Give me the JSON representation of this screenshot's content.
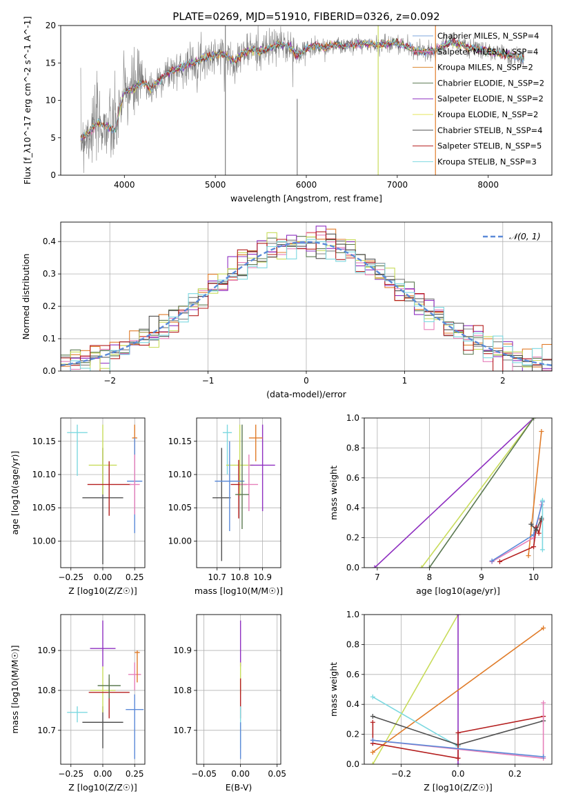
{
  "figure": {
    "suptitle": "PLATE=0269, MJD=51910, FIBERID=0326, z=0.092"
  },
  "chart_data": [
    {
      "id": "spectrum",
      "type": "line",
      "xlabel": "wavelength [Angstrom, rest frame]",
      "ylabel": "Flux [f_λ10^-17 erg cm^-2 s^-1 A^-1]",
      "xlim": [
        3300,
        8700
      ],
      "ylim": [
        0,
        20
      ],
      "xticks": [
        4000,
        5000,
        6000,
        7000,
        8000
      ],
      "yticks": [
        0,
        5,
        10,
        15,
        20
      ],
      "grid": false,
      "legend_position": "right",
      "spikes": [
        {
          "x": 5110,
          "y_top": 20,
          "color": "#7f7f7f"
        },
        {
          "x": 6790,
          "y_top": 20,
          "color": "#c8dc5a"
        },
        {
          "x": 7420,
          "y_top": 20,
          "color": "#e07b28"
        },
        {
          "x": 5900,
          "y_top": 10.2,
          "color": "#7f7f7f"
        }
      ],
      "continuum": [
        [
          3520,
          5.0
        ],
        [
          3600,
          5.5
        ],
        [
          3700,
          7.0
        ],
        [
          3800,
          6.5
        ],
        [
          3900,
          6.0
        ],
        [
          3950,
          9.0
        ],
        [
          4000,
          11.0
        ],
        [
          4100,
          11.5
        ],
        [
          4200,
          12.5
        ],
        [
          4300,
          11.5
        ],
        [
          4400,
          13.0
        ],
        [
          4500,
          13.8
        ],
        [
          4600,
          14.2
        ],
        [
          4700,
          14.8
        ],
        [
          4800,
          15.2
        ],
        [
          4900,
          15.8
        ],
        [
          5000,
          16.0
        ],
        [
          5100,
          16.3
        ],
        [
          5200,
          15.2
        ],
        [
          5300,
          16.3
        ],
        [
          5400,
          16.8
        ],
        [
          5500,
          16.6
        ],
        [
          5600,
          17.0
        ],
        [
          5700,
          17.5
        ],
        [
          5800,
          17.3
        ],
        [
          5900,
          16.0
        ],
        [
          6000,
          16.8
        ],
        [
          6100,
          17.3
        ],
        [
          6200,
          17.0
        ],
        [
          6300,
          17.5
        ],
        [
          6400,
          17.2
        ],
        [
          6500,
          17.4
        ],
        [
          6600,
          17.6
        ],
        [
          6700,
          17.5
        ],
        [
          6800,
          17.4
        ],
        [
          6900,
          17.6
        ],
        [
          7000,
          17.6
        ],
        [
          7100,
          17.3
        ],
        [
          7200,
          16.6
        ],
        [
          7300,
          16.5
        ],
        [
          7400,
          16.6
        ],
        [
          7500,
          17.2
        ],
        [
          7600,
          17.8
        ],
        [
          7700,
          17.4
        ],
        [
          7800,
          17.0
        ],
        [
          7900,
          16.8
        ],
        [
          8000,
          16.6
        ],
        [
          8100,
          16.3
        ],
        [
          8200,
          16.1
        ],
        [
          8300,
          15.9
        ],
        [
          8400,
          15.5
        ]
      ],
      "series": [
        {
          "name": "Chabrier MILES, N_SSP=4",
          "color": "#7ea4dc"
        },
        {
          "name": "Salpeter MILES, N_SSP=4",
          "color": "#e67fb9"
        },
        {
          "name": "Kroupa MILES, N_SSP=2",
          "color": "#dc8228"
        },
        {
          "name": "Chabrier ELODIE, N_SSP=2",
          "color": "#5a7850"
        },
        {
          "name": "Salpeter ELODIE, N_SSP=2",
          "color": "#8e2ec0"
        },
        {
          "name": "Kroupa ELODIE, N_SSP=2",
          "color": "#e6e65a"
        },
        {
          "name": "Chabrier STELIB, N_SSP=4",
          "color": "#505050"
        },
        {
          "name": "Salpeter STELIB, N_SSP=5",
          "color": "#b41e1e"
        },
        {
          "name": "Kroupa STELIB, N_SSP=3",
          "color": "#7cd8e0"
        }
      ]
    },
    {
      "id": "residuals",
      "type": "line",
      "xlabel": "(data-model)/error",
      "ylabel": "Normed distribution",
      "xlim": [
        -2.5,
        2.5
      ],
      "ylim": [
        0,
        0.46
      ],
      "xticks": [
        -2,
        -1,
        0,
        1,
        2
      ],
      "yticks": [
        0.0,
        0.1,
        0.2,
        0.3,
        0.4
      ],
      "grid": true,
      "legend_position": "top-right",
      "legend_label": "𝒩(0, 1)",
      "gaussian": {
        "mu": 0,
        "sigma": 1,
        "color": "#5b8ad8"
      },
      "hist_colors": [
        "#7f7f7f",
        "#e07b28",
        "#e67fb9",
        "#5a7850",
        "#8e2ec0",
        "#c8dc5a",
        "#505050",
        "#b41e1e",
        "#7cd8e0"
      ]
    },
    {
      "id": "age-vs-Z",
      "type": "scatter",
      "xlabel": "Z [log10(Z/Z☉)]",
      "ylabel": "age  [log10(age/yr)]",
      "xlim": [
        -0.33,
        0.33
      ],
      "ylim": [
        9.96,
        10.185
      ],
      "xticks": [
        -0.25,
        0.0,
        0.25
      ],
      "yticks": [
        10.0,
        10.05,
        10.1,
        10.15
      ],
      "grid": true,
      "points": [
        {
          "x": -0.2,
          "y": 10.163,
          "xerr": 0.08,
          "ylo": 10.098,
          "yhi": 10.175,
          "color": "#7cd8e0"
        },
        {
          "x": 0.0,
          "y": 10.065,
          "xerr": 0.16,
          "ylo": 9.965,
          "yhi": 10.14,
          "color": "#505050"
        },
        {
          "x": 0.0,
          "y": 10.114,
          "xerr": 0.11,
          "ylo": 10.07,
          "yhi": 10.175,
          "color": "#c8dc5a"
        },
        {
          "x": 0.05,
          "y": 10.085,
          "xerr": 0.17,
          "ylo": 10.038,
          "yhi": 10.12,
          "color": "#b41e1e"
        },
        {
          "x": 0.25,
          "y": 10.155,
          "xerr": 0.02,
          "ylo": 10.118,
          "yhi": 10.175,
          "color": "#e07b28"
        },
        {
          "x": 0.25,
          "y": 10.09,
          "xerr": 0.06,
          "ylo": 10.012,
          "yhi": 10.155,
          "color": "#5b8ad8"
        },
        {
          "x": 0.25,
          "y": 10.085,
          "xerr": 0.04,
          "ylo": 10.04,
          "yhi": 10.13,
          "color": "#e67fb9"
        }
      ]
    },
    {
      "id": "age-vs-mass",
      "type": "scatter",
      "xlabel": "mass [log10(M/M☉)]",
      "ylabel": "",
      "xlim": [
        10.61,
        10.98
      ],
      "ylim": [
        9.96,
        10.185
      ],
      "xticks": [
        10.7,
        10.8,
        10.9
      ],
      "xticklabels": [
        "10.7",
        "10.8",
        "10.9"
      ],
      "yticks": [
        10.0,
        10.05,
        10.1,
        10.15
      ],
      "grid": true,
      "points": [
        {
          "x": 10.745,
          "y": 10.163,
          "xerr": 0.02,
          "ylo": 10.1,
          "yhi": 10.175,
          "color": "#7cd8e0"
        },
        {
          "x": 10.72,
          "y": 10.065,
          "xerr": 0.04,
          "ylo": 9.97,
          "yhi": 10.14,
          "color": "#505050"
        },
        {
          "x": 10.8,
          "y": 10.114,
          "xerr": 0.06,
          "ylo": 10.068,
          "yhi": 10.175,
          "color": "#c8dc5a"
        },
        {
          "x": 10.795,
          "y": 10.085,
          "xerr": 0.035,
          "ylo": 10.034,
          "yhi": 10.122,
          "color": "#b41e1e"
        },
        {
          "x": 10.755,
          "y": 10.09,
          "xerr": 0.065,
          "ylo": 10.015,
          "yhi": 10.15,
          "color": "#5b8ad8"
        },
        {
          "x": 10.84,
          "y": 10.085,
          "xerr": 0.04,
          "ylo": 10.045,
          "yhi": 10.13,
          "color": "#e67fb9"
        },
        {
          "x": 10.9,
          "y": 10.114,
          "xerr": 0.055,
          "ylo": 10.045,
          "yhi": 10.175,
          "color": "#8e2ec0"
        },
        {
          "x": 10.87,
          "y": 10.155,
          "xerr": 0.03,
          "ylo": 10.12,
          "yhi": 10.175,
          "color": "#e07b28"
        },
        {
          "x": 10.81,
          "y": 10.07,
          "xerr": 0.03,
          "ylo": 10.018,
          "yhi": 10.175,
          "color": "#5a7850"
        }
      ]
    },
    {
      "id": "mass-weight-vs-age",
      "type": "line",
      "xlabel": "age  [log10(age/yr)]",
      "ylabel": "mass weight",
      "xlim": [
        6.75,
        10.35
      ],
      "ylim": [
        0,
        1.0
      ],
      "xticks": [
        7,
        8,
        9,
        10
      ],
      "yticks": [
        0.0,
        0.2,
        0.4,
        0.6,
        0.8,
        1.0
      ],
      "grid": true,
      "series": [
        {
          "color": "#8e2ec0",
          "points": [
            [
              6.95,
              0.0
            ],
            [
              10.0,
              1.0
            ]
          ]
        },
        {
          "color": "#c8dc5a",
          "points": [
            [
              7.85,
              0.0
            ],
            [
              10.0,
              1.0
            ]
          ]
        },
        {
          "color": "#5a7850",
          "points": [
            [
              8.0,
              0.0
            ],
            [
              10.0,
              1.0
            ]
          ]
        },
        {
          "color": "#e07b28",
          "points": [
            [
              9.9,
              0.08
            ],
            [
              10.15,
              0.91
            ]
          ]
        },
        {
          "color": "#e67fb9",
          "points": [
            [
              9.2,
              0.04
            ],
            [
              10.0,
              0.2
            ],
            [
              10.15,
              0.42
            ]
          ]
        },
        {
          "color": "#5b8ad8",
          "points": [
            [
              9.2,
              0.045
            ],
            [
              10.0,
              0.22
            ],
            [
              10.17,
              0.44
            ]
          ]
        },
        {
          "color": "#b41e1e",
          "points": [
            [
              9.35,
              0.04
            ],
            [
              10.0,
              0.14
            ],
            [
              10.05,
              0.27
            ],
            [
              10.1,
              0.23
            ],
            [
              10.15,
              0.32
            ]
          ]
        },
        {
          "color": "#505050",
          "points": [
            [
              9.95,
              0.29
            ],
            [
              10.05,
              0.25
            ],
            [
              10.15,
              0.33
            ]
          ]
        },
        {
          "color": "#7cd8e0",
          "points": [
            [
              10.17,
              0.12
            ],
            [
              10.17,
              0.45
            ]
          ]
        }
      ]
    },
    {
      "id": "mass-vs-Z",
      "type": "scatter",
      "xlabel": "Z [log10(Z/Z☉)]",
      "ylabel": "mass [log10(M/M☉)]",
      "xlim": [
        -0.33,
        0.33
      ],
      "ylim": [
        10.615,
        10.99
      ],
      "xticks": [
        -0.25,
        0.0,
        0.25
      ],
      "yticks": [
        10.7,
        10.8,
        10.9
      ],
      "grid": true,
      "points": [
        {
          "x": -0.2,
          "y": 10.745,
          "xerr": 0.08,
          "ylo": 10.72,
          "yhi": 10.76,
          "color": "#7cd8e0"
        },
        {
          "x": 0.0,
          "y": 10.72,
          "xerr": 0.16,
          "ylo": 10.655,
          "yhi": 10.76,
          "color": "#505050"
        },
        {
          "x": 0.0,
          "y": 10.8,
          "xerr": 0.1,
          "ylo": 10.745,
          "yhi": 10.86,
          "color": "#c8dc5a"
        },
        {
          "x": 0.05,
          "y": 10.795,
          "xerr": 0.16,
          "ylo": 10.73,
          "yhi": 10.83,
          "color": "#b41e1e"
        },
        {
          "x": 0.05,
          "y": 10.812,
          "xerr": 0.09,
          "ylo": 10.78,
          "yhi": 10.84,
          "color": "#5a7850"
        },
        {
          "x": 0.0,
          "y": 10.905,
          "xerr": 0.1,
          "ylo": 10.86,
          "yhi": 10.975,
          "color": "#8e2ec0"
        },
        {
          "x": 0.25,
          "y": 10.84,
          "xerr": 0.05,
          "ylo": 10.8,
          "yhi": 10.87,
          "color": "#e67fb9"
        },
        {
          "x": 0.25,
          "y": 10.752,
          "xerr": 0.07,
          "ylo": 10.628,
          "yhi": 10.79,
          "color": "#5b8ad8"
        },
        {
          "x": 0.27,
          "y": 10.895,
          "xerr": 0.02,
          "ylo": 10.82,
          "yhi": 10.9,
          "color": "#e07b28"
        }
      ]
    },
    {
      "id": "mass-vs-ebv",
      "type": "scatter",
      "xlabel": "E(B-V)",
      "ylabel": "",
      "xlim": [
        -0.06,
        0.055
      ],
      "ylim": [
        10.615,
        10.99
      ],
      "xticks": [
        -0.05,
        0.0,
        0.05
      ],
      "xticklabels": [
        "−0.05",
        "0.00",
        "0.05"
      ],
      "yticks": [
        10.7,
        10.8,
        10.9
      ],
      "grid": true,
      "points": [
        {
          "x": 0.0,
          "y": 10.905,
          "ylo": 10.86,
          "yhi": 10.975,
          "color": "#8e2ec0"
        },
        {
          "x": 0.0,
          "y": 10.82,
          "ylo": 10.79,
          "yhi": 10.87,
          "color": "#c8dc5a"
        },
        {
          "x": 0.0,
          "y": 10.795,
          "ylo": 10.73,
          "yhi": 10.83,
          "color": "#b41e1e"
        },
        {
          "x": 0.0,
          "y": 10.72,
          "ylo": 10.655,
          "yhi": 10.76,
          "color": "#7cd8e0"
        },
        {
          "x": 0.0,
          "y": 10.68,
          "ylo": 10.628,
          "yhi": 10.72,
          "color": "#5b8ad8"
        }
      ]
    },
    {
      "id": "mass-weight-vs-Z",
      "type": "line",
      "xlabel": "Z [log10(Z/Z☉)]",
      "ylabel": "mass weight",
      "xlim": [
        -0.33,
        0.33
      ],
      "ylim": [
        0,
        1.0
      ],
      "xticks": [
        -0.2,
        0.0,
        0.2
      ],
      "yticks": [
        0.0,
        0.2,
        0.4,
        0.6,
        0.8,
        1.0
      ],
      "grid": true,
      "series": [
        {
          "color": "#c8dc5a",
          "points": [
            [
              -0.3,
              0.0
            ],
            [
              0.0,
              1.0
            ]
          ]
        },
        {
          "color": "#8e2ec0",
          "points": [
            [
              0.0,
              0.0
            ],
            [
              0.0,
              1.0
            ]
          ]
        },
        {
          "color": "#e07b28",
          "points": [
            [
              -0.3,
              0.08
            ],
            [
              0.3,
              0.91
            ]
          ]
        },
        {
          "color": "#7cd8e0",
          "points": [
            [
              -0.3,
              0.45
            ],
            [
              0.0,
              0.12
            ]
          ]
        },
        {
          "color": "#505050",
          "points": [
            [
              -0.3,
              0.32
            ],
            [
              0.0,
              0.13
            ],
            [
              0.3,
              0.29
            ]
          ]
        },
        {
          "color": "#b41e1e",
          "points": [
            [
              -0.3,
              0.14
            ],
            [
              0.0,
              0.04
            ]
          ]
        },
        {
          "color": "#b41e1e",
          "points": [
            [
              -0.3,
              0.14
            ],
            [
              -0.3,
              0.28
            ]
          ]
        },
        {
          "color": "#b41e1e",
          "points": [
            [
              0.0,
              0.04
            ],
            [
              0.0,
              0.21
            ],
            [
              0.3,
              0.32
            ]
          ]
        },
        {
          "color": "#e67fb9",
          "points": [
            [
              -0.3,
              0.16
            ],
            [
              0.3,
              0.04
            ],
            [
              0.3,
              0.41
            ]
          ]
        },
        {
          "color": "#5b8ad8",
          "points": [
            [
              -0.3,
              0.16
            ],
            [
              0.3,
              0.05
            ]
          ]
        }
      ]
    }
  ]
}
